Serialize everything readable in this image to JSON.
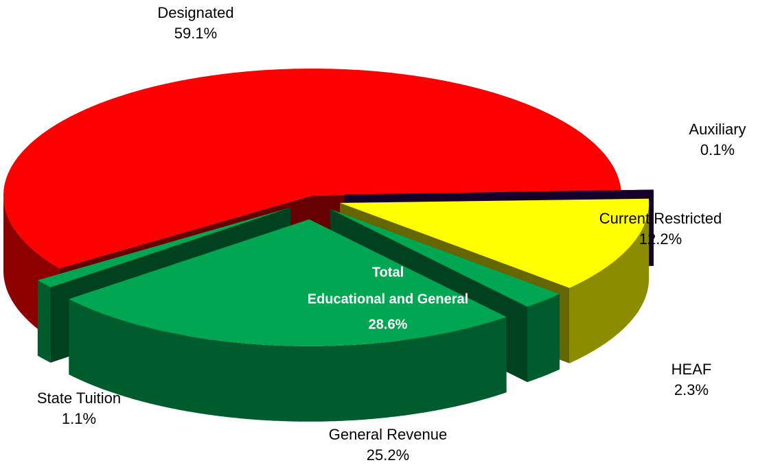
{
  "chart_data": {
    "type": "pie3d",
    "labels": [
      "Designated",
      "Auxiliary",
      "Current Restricted",
      "HEAF",
      "General Revenue",
      "State Tuition"
    ],
    "values": [
      59.1,
      0.1,
      12.2,
      2.3,
      25.2,
      1.1
    ],
    "value_labels": [
      "59.1%",
      "0.1%",
      "12.2%",
      "2.3%",
      "25.2%",
      "1.1%"
    ],
    "colors": [
      "#ff0000",
      "#330066",
      "#ffff00",
      "#00a651",
      "#00a651",
      "#00a651"
    ],
    "annotation": [
      "Total",
      "Educational and General",
      "28.6%"
    ]
  }
}
